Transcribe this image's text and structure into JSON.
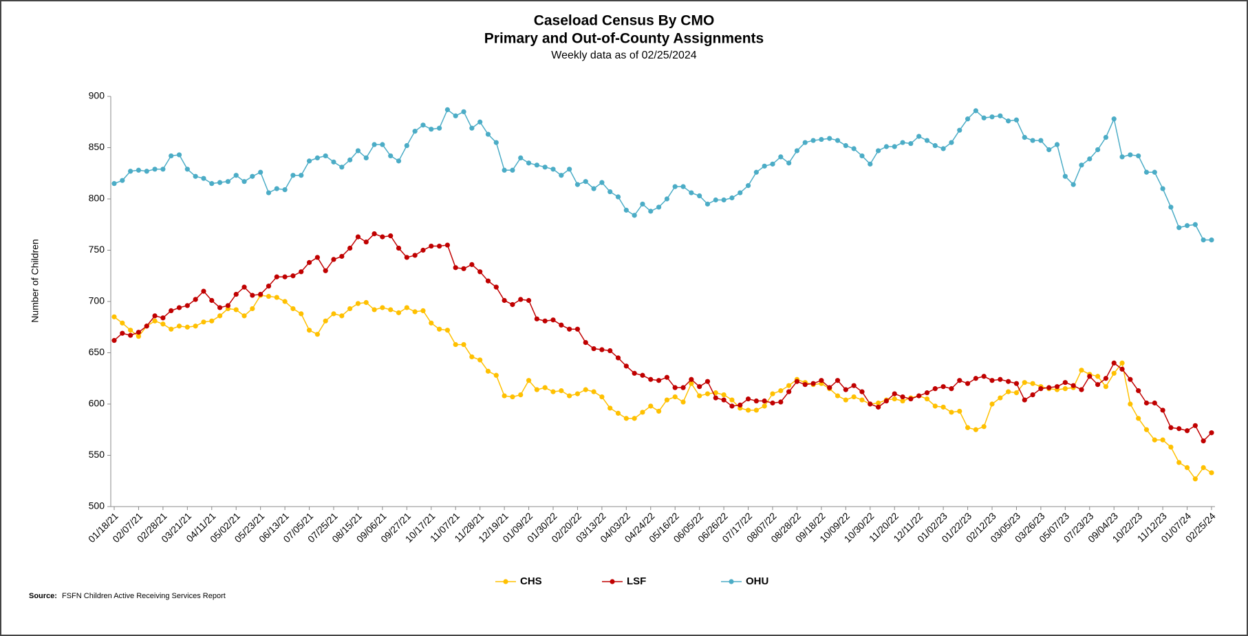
{
  "chart_data": {
    "type": "line",
    "title": "Caseload Census By CMO",
    "subtitle": "Primary and Out-of-County Assignments",
    "note": "Weekly data as of 02/25/2024",
    "y_label": "Number of Children",
    "source_label": "Source:",
    "source": "FSFN Children Active Receiving Services Report",
    "categories": [
      "01/18/21",
      null,
      null,
      "02/07/21",
      null,
      null,
      "02/28/21",
      null,
      null,
      "03/21/21",
      null,
      null,
      "04/11/21",
      null,
      null,
      "05/02/21",
      null,
      null,
      "05/23/21",
      null,
      null,
      "06/13/21",
      null,
      null,
      "07/05/21",
      null,
      null,
      "07/25/21",
      null,
      null,
      "08/15/21",
      null,
      null,
      "09/06/21",
      null,
      null,
      "09/27/21",
      null,
      null,
      "10/17/21",
      null,
      null,
      "11/07/21",
      null,
      null,
      "11/28/21",
      null,
      null,
      "12/19/21",
      null,
      null,
      "01/09/22",
      null,
      null,
      "01/30/22",
      null,
      null,
      "02/20/22",
      null,
      null,
      "03/13/22",
      null,
      null,
      "04/03/22",
      null,
      null,
      "04/24/22",
      null,
      null,
      "05/16/22",
      null,
      null,
      "06/05/22",
      null,
      null,
      "06/26/22",
      null,
      null,
      "07/17/22",
      null,
      null,
      "08/07/22",
      null,
      null,
      "08/28/22",
      null,
      null,
      "09/18/22",
      null,
      null,
      "10/09/22",
      null,
      null,
      "10/30/22",
      null,
      null,
      "11/20/22",
      null,
      null,
      "12/11/22",
      null,
      null,
      "01/02/23",
      null,
      null,
      "01/22/23",
      null,
      null,
      "02/12/23",
      null,
      null,
      "03/05/23",
      null,
      null,
      "03/26/23",
      null,
      null,
      "05/07/23",
      null,
      null,
      "07/23/23",
      null,
      null,
      "09/04/23",
      null,
      null,
      "10/22/23",
      null,
      null,
      "11/12/23",
      null,
      null,
      "01/07/24",
      null,
      null,
      "02/25/24"
    ],
    "series": [
      {
        "name": "CHS",
        "color": "#ffc000",
        "values": [
          685,
          679,
          672,
          666,
          676,
          681,
          678,
          673,
          676,
          675,
          676,
          680,
          681,
          686,
          693,
          692,
          686,
          693,
          706,
          705,
          704,
          700,
          693,
          688,
          672,
          668,
          681,
          688,
          686,
          693,
          698,
          699,
          692,
          694,
          692,
          689,
          694,
          690,
          691,
          679,
          673,
          672,
          658,
          658,
          646,
          643,
          632,
          628,
          608,
          607,
          609,
          623,
          614,
          616,
          612,
          613,
          608,
          610,
          614,
          612,
          607,
          596,
          591,
          586,
          586,
          592,
          598,
          593,
          604,
          607,
          602,
          620,
          608,
          610,
          611,
          609,
          604,
          596,
          594,
          594,
          598,
          610,
          613,
          618,
          624,
          621,
          619,
          620,
          615,
          608,
          604,
          607,
          604,
          600,
          601,
          604,
          605,
          603,
          606,
          608,
          605,
          598,
          597,
          592,
          593,
          577,
          575,
          578,
          600,
          606,
          612,
          611,
          621,
          620,
          617,
          615,
          614,
          615,
          616,
          633,
          629,
          627,
          617,
          630,
          640,
          600,
          586,
          575,
          565,
          565,
          558,
          543,
          538,
          527,
          538,
          533
        ]
      },
      {
        "name": "LSF",
        "color": "#c00000",
        "values": [
          662,
          669,
          667,
          670,
          676,
          686,
          684,
          691,
          694,
          696,
          702,
          710,
          701,
          694,
          696,
          707,
          714,
          706,
          707,
          715,
          724,
          724,
          725,
          729,
          738,
          743,
          730,
          741,
          744,
          752,
          763,
          758,
          766,
          763,
          764,
          752,
          743,
          745,
          750,
          754,
          754,
          755,
          733,
          732,
          736,
          729,
          720,
          714,
          701,
          697,
          702,
          701,
          683,
          681,
          682,
          677,
          673,
          673,
          660,
          654,
          653,
          652,
          645,
          637,
          630,
          628,
          624,
          623,
          626,
          616,
          616,
          624,
          617,
          622,
          606,
          604,
          598,
          599,
          605,
          603,
          603,
          601,
          602,
          612,
          622,
          619,
          620,
          623,
          616,
          623,
          614,
          618,
          612,
          600,
          597,
          603,
          610,
          607,
          605,
          608,
          611,
          615,
          617,
          615,
          623,
          620,
          625,
          627,
          623,
          624,
          622,
          620,
          604,
          609,
          615,
          616,
          617,
          621,
          618,
          614,
          627,
          619,
          625,
          640,
          634,
          624,
          613,
          601,
          601,
          594,
          577,
          576,
          574,
          579,
          564,
          572
        ]
      },
      {
        "name": "OHU",
        "color": "#4bacc6",
        "values": [
          815,
          818,
          827,
          828,
          827,
          829,
          829,
          842,
          843,
          829,
          822,
          820,
          815,
          816,
          817,
          823,
          817,
          822,
          826,
          806,
          810,
          809,
          823,
          823,
          837,
          840,
          842,
          836,
          831,
          838,
          847,
          840,
          853,
          853,
          842,
          837,
          852,
          866,
          872,
          868,
          869,
          887,
          881,
          885,
          869,
          875,
          863,
          855,
          828,
          828,
          840,
          835,
          833,
          831,
          829,
          823,
          829,
          814,
          817,
          810,
          816,
          807,
          802,
          789,
          784,
          795,
          788,
          792,
          800,
          812,
          812,
          806,
          803,
          795,
          799,
          799,
          801,
          806,
          813,
          826,
          832,
          834,
          841,
          835,
          847,
          855,
          857,
          858,
          859,
          857,
          852,
          849,
          842,
          834,
          847,
          851,
          851,
          855,
          854,
          861,
          857,
          852,
          849,
          855,
          867,
          878,
          886,
          879,
          880,
          881,
          876,
          877,
          860,
          857,
          857,
          848,
          853,
          822,
          814,
          833,
          839,
          848,
          860,
          878,
          841,
          843,
          842,
          826,
          826,
          810,
          792,
          772,
          774,
          775,
          760,
          760
        ]
      }
    ],
    "ylim": [
      500,
      900
    ],
    "yticks": [
      500,
      550,
      600,
      650,
      700,
      750,
      800,
      850,
      900
    ],
    "grid": false,
    "legend": "bottom"
  }
}
